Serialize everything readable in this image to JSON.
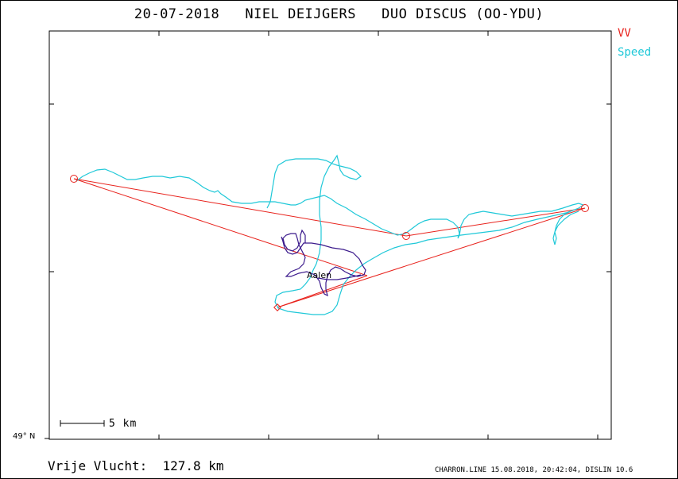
{
  "header": {
    "title": "20-07-2018   NIEL DEIJGERS   DUO DISCUS (OO-YDU)"
  },
  "legend": {
    "items": [
      {
        "label": "VV",
        "color": "#e8221c"
      },
      {
        "label": "Speed",
        "color": "#1fc8d8"
      }
    ]
  },
  "map": {
    "latitude_label": "49° N",
    "scale_label": "5 km",
    "place_label": "Aalen",
    "colors": {
      "task_line": "#e8221c",
      "flight_track": "#1fc8d8",
      "local_track": "#3b1a8c",
      "frame": "#000000"
    }
  },
  "footer": {
    "distance": "Vrije Vlucht:  127.8 km",
    "credit": "CHARRON.LINE 15.08.2018, 20:42:04, DISLIN 10.6"
  }
}
